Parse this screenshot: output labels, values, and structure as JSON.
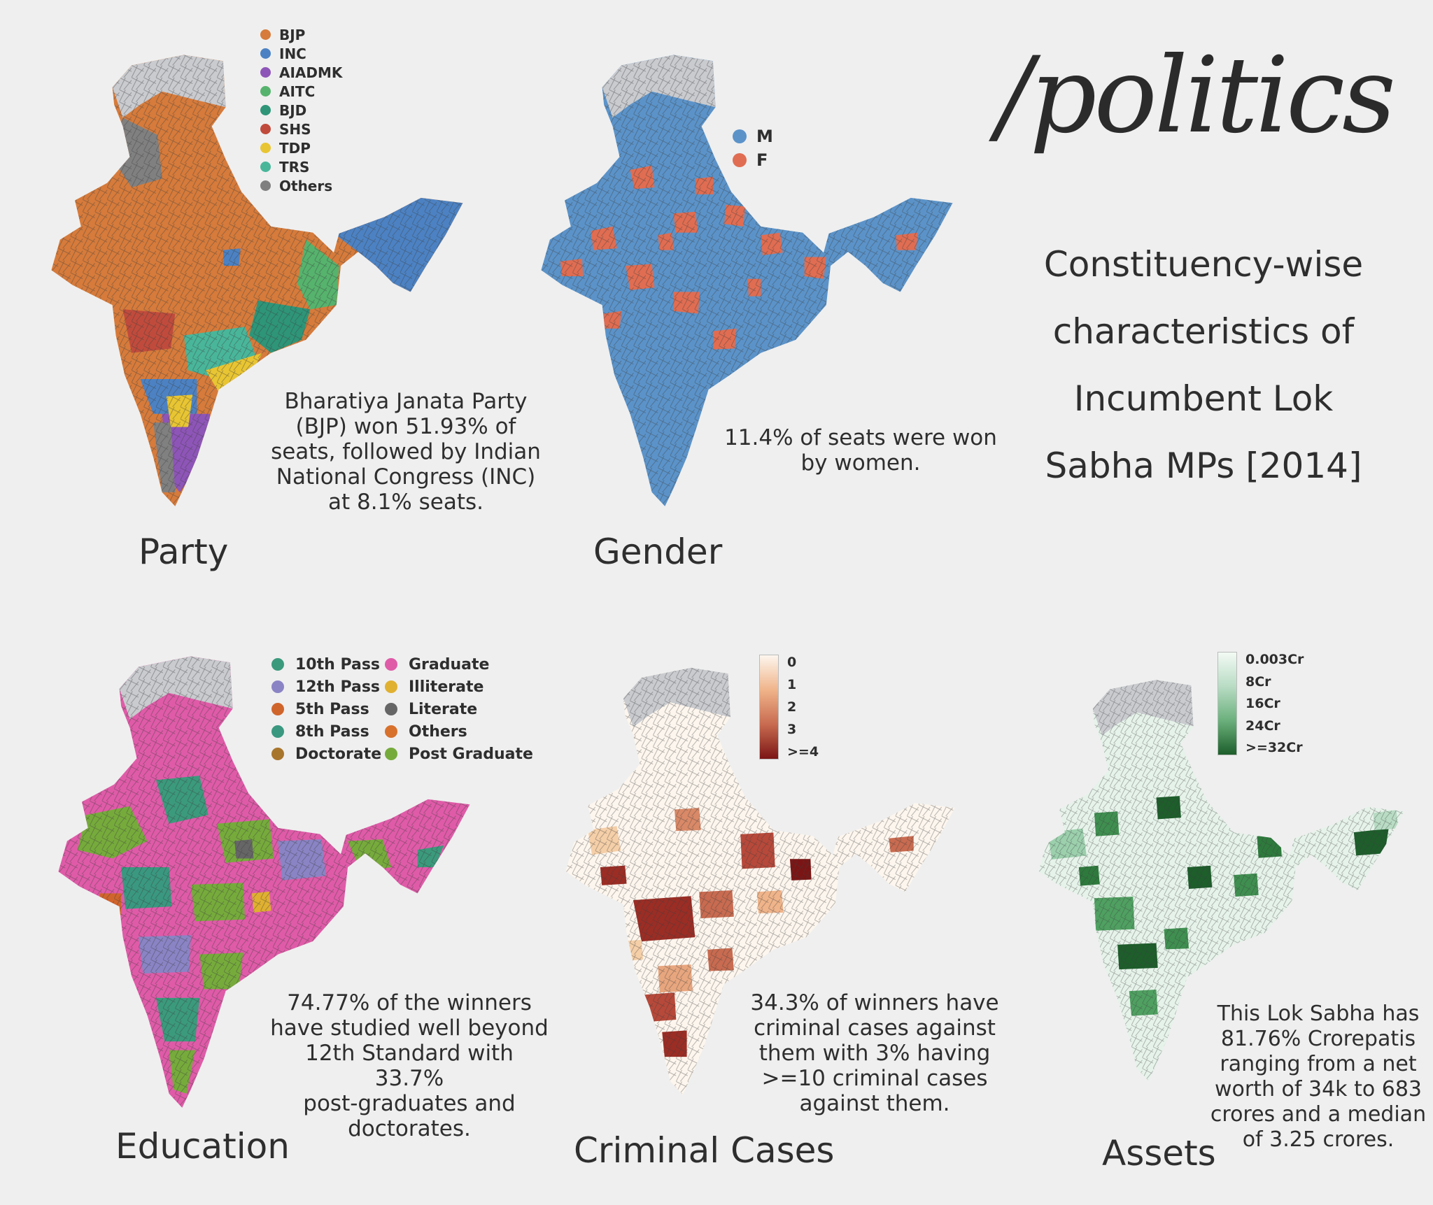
{
  "header": {
    "title": "/politics",
    "subtitle_lines": [
      "Constituency-wise",
      "characteristics of",
      "Incumbent Lok",
      "Sabha MPs [2014]"
    ]
  },
  "colors": {
    "background": "#efefef",
    "outside_region": "#c9cbcf",
    "party": {
      "BJP": "#d67b3b",
      "INC": "#4c82c3",
      "AIADMK": "#8e55b8",
      "AITC": "#56b36d",
      "BJD": "#2e9578",
      "SHS": "#c04b3c",
      "TDP": "#e8c532",
      "TRS": "#49b69a",
      "Others": "#808080"
    },
    "gender": {
      "M": "#5b93c9",
      "F": "#e06d52"
    },
    "criminal_scale": [
      "#fdf6ee",
      "#7b1515"
    ],
    "assets_scale": [
      "#f3faf5",
      "#1d5e2b"
    ]
  },
  "party": {
    "label": "Party",
    "legend": [
      {
        "name": "BJP",
        "color": "#d67b3b"
      },
      {
        "name": "INC",
        "color": "#4c82c3"
      },
      {
        "name": "AIADMK",
        "color": "#8e55b8"
      },
      {
        "name": "AITC",
        "color": "#56b36d"
      },
      {
        "name": "BJD",
        "color": "#2e9578"
      },
      {
        "name": "SHS",
        "color": "#c04b3c"
      },
      {
        "name": "TDP",
        "color": "#e8c532"
      },
      {
        "name": "TRS",
        "color": "#49b69a"
      },
      {
        "name": "Others",
        "color": "#808080"
      }
    ],
    "caption_lines": [
      "Bharatiya Janata Party",
      "(BJP) won  51.93% of",
      "seats, followed by Indian",
      "National Congress (INC)",
      "at 8.1% seats."
    ]
  },
  "gender": {
    "label": "Gender",
    "legend": [
      {
        "name": "M",
        "color": "#5b93c9"
      },
      {
        "name": "F",
        "color": "#e06d52"
      }
    ],
    "caption_lines": [
      "11.4% of seats were won",
      "by women."
    ]
  },
  "education": {
    "label": "Education",
    "legend_col1": [
      {
        "name": "10th Pass",
        "color": "#3b9a7c"
      },
      {
        "name": "12th Pass",
        "color": "#8a84c5"
      },
      {
        "name": "5th Pass",
        "color": "#d0652c"
      },
      {
        "name": "8th Pass",
        "color": "#3a9880"
      },
      {
        "name": "Doctorate",
        "color": "#a8752c"
      }
    ],
    "legend_col2": [
      {
        "name": "Graduate",
        "color": "#df5ba8"
      },
      {
        "name": "Illiterate",
        "color": "#e0b030"
      },
      {
        "name": "Literate",
        "color": "#666666"
      },
      {
        "name": "Others",
        "color": "#d8712c"
      },
      {
        "name": "Post Graduate",
        "color": "#76ab3c"
      }
    ],
    "caption_lines": [
      "74.77% of the winners",
      "have studied well beyond",
      "12th Standard with 33.7%",
      "post-graduates and",
      "doctorates."
    ]
  },
  "criminal": {
    "label": "Criminal Cases",
    "legend_ticks": [
      "0",
      "1",
      "2",
      "3",
      ">=4"
    ],
    "caption_lines": [
      "34.3% of winners have",
      "criminal cases against",
      "them with 3% having",
      ">=10 criminal cases",
      "against them."
    ]
  },
  "assets": {
    "label": "Assets",
    "legend_ticks": [
      "0.003Cr",
      "8Cr",
      "16Cr",
      "24Cr",
      ">=32Cr"
    ],
    "caption_lines": [
      "This Lok Sabha has",
      "81.76% Crorepatis",
      "ranging from a net",
      "worth of 34k to 683",
      "crores and a median",
      "of 3.25 crores."
    ]
  }
}
